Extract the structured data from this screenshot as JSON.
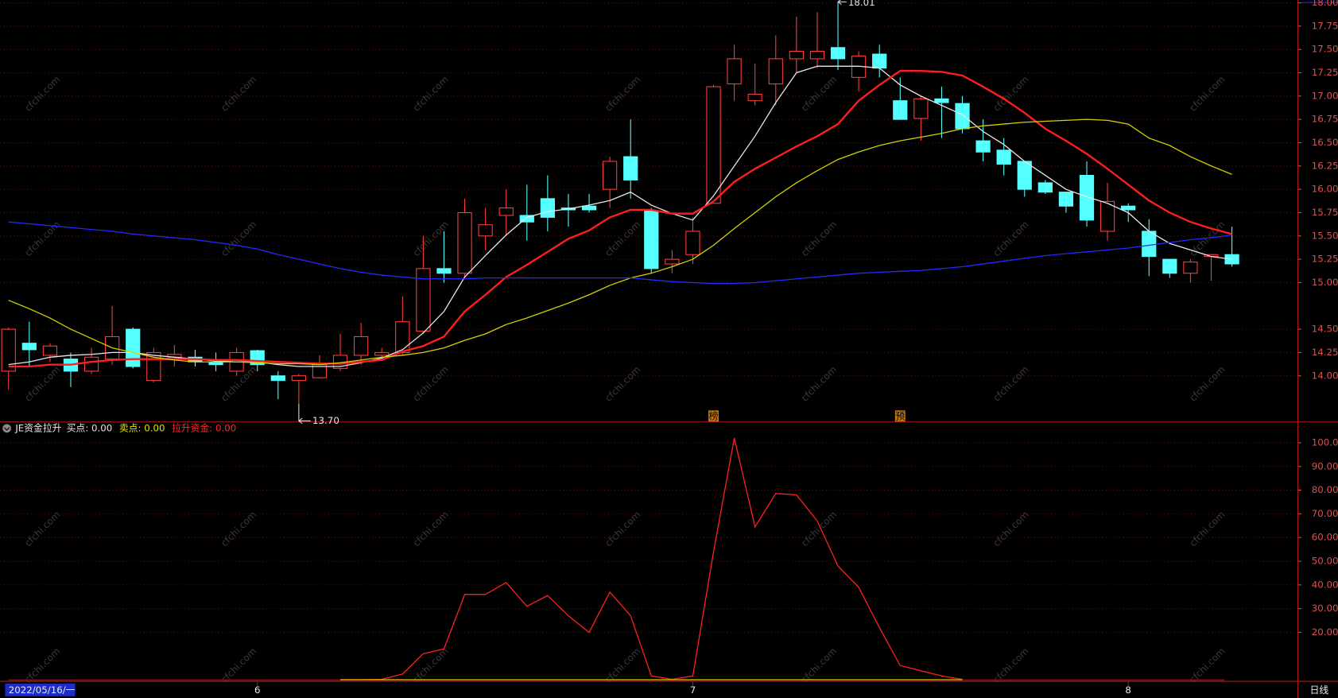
{
  "watermark": "cfchi.com",
  "chart_data": [
    {
      "type": "candlestick",
      "categories": [
        "2022/05/16/一",
        null,
        null,
        null,
        null,
        null,
        null,
        null,
        null,
        null,
        null,
        null,
        "6",
        null,
        null,
        null,
        null,
        null,
        null,
        null,
        null,
        null,
        null,
        null,
        null,
        null,
        null,
        null,
        null,
        null,
        null,
        null,
        null,
        "7",
        null,
        null,
        null,
        null,
        null,
        null,
        null,
        null,
        null,
        null,
        null,
        null,
        null,
        null,
        null,
        null,
        null,
        null,
        null,
        null,
        "8",
        null,
        null,
        null,
        null,
        null
      ],
      "period": "日线",
      "open": [
        14.05,
        14.35,
        14.22,
        14.18,
        14.05,
        14.18,
        14.5,
        13.95,
        14.2,
        14.2,
        14.15,
        14.05,
        14.27,
        14.0,
        13.95,
        13.98,
        14.08,
        14.22,
        14.22,
        14.25,
        14.48,
        15.15,
        15.1,
        15.5,
        15.72,
        15.72,
        15.9,
        15.8,
        15.82,
        16.0,
        16.35,
        15.77,
        15.2,
        15.3,
        15.85,
        17.13,
        16.95,
        17.13,
        17.4,
        17.4,
        17.52,
        17.2,
        17.45,
        16.95,
        16.76,
        16.97,
        16.92,
        16.52,
        16.42,
        16.3,
        16.07,
        15.97,
        16.15,
        15.55,
        15.82,
        15.55,
        15.25,
        15.1,
        15.28,
        15.3
      ],
      "high": [
        14.52,
        14.58,
        14.35,
        14.25,
        14.3,
        14.75,
        14.52,
        14.3,
        14.33,
        14.28,
        14.25,
        14.3,
        14.28,
        14.05,
        14.02,
        14.22,
        14.45,
        14.57,
        14.3,
        14.85,
        15.5,
        15.55,
        15.9,
        15.8,
        16.0,
        16.05,
        16.15,
        15.95,
        15.95,
        16.35,
        16.75,
        15.8,
        15.35,
        15.7,
        17.12,
        17.55,
        17.35,
        17.65,
        17.85,
        17.9,
        18.01,
        17.48,
        17.55,
        17.2,
        17.0,
        17.1,
        17.0,
        16.75,
        16.55,
        16.3,
        16.1,
        15.97,
        16.3,
        16.07,
        15.85,
        15.68,
        15.25,
        15.25,
        15.3,
        15.6
      ],
      "low": [
        13.85,
        14.1,
        14.15,
        13.88,
        14.02,
        14.12,
        14.08,
        13.93,
        14.1,
        14.1,
        14.05,
        14.0,
        14.05,
        13.75,
        13.7,
        13.97,
        14.05,
        14.12,
        14.2,
        14.22,
        14.45,
        15.0,
        15.05,
        15.35,
        15.5,
        15.45,
        15.55,
        15.6,
        15.75,
        15.8,
        15.9,
        15.1,
        15.1,
        15.2,
        15.85,
        16.95,
        16.9,
        16.9,
        17.25,
        17.3,
        17.28,
        17.05,
        17.2,
        16.75,
        16.52,
        16.55,
        16.6,
        16.3,
        16.15,
        15.92,
        15.95,
        15.75,
        15.6,
        15.45,
        15.65,
        15.07,
        15.05,
        15.0,
        15.02,
        15.17
      ],
      "close": [
        14.5,
        14.28,
        14.32,
        14.05,
        14.2,
        14.42,
        14.1,
        14.25,
        14.23,
        14.15,
        14.12,
        14.25,
        14.12,
        13.95,
        14.0,
        14.12,
        14.22,
        14.42,
        14.25,
        14.58,
        15.15,
        15.1,
        15.75,
        15.62,
        15.8,
        15.65,
        15.7,
        15.78,
        15.78,
        16.3,
        16.1,
        15.15,
        15.25,
        15.55,
        17.1,
        17.4,
        17.02,
        17.4,
        17.48,
        17.48,
        17.4,
        17.43,
        17.3,
        16.75,
        16.97,
        16.93,
        16.65,
        16.4,
        16.27,
        16.0,
        15.97,
        15.82,
        15.67,
        15.87,
        15.78,
        15.28,
        15.1,
        15.22,
        15.3,
        15.2
      ],
      "low_labels": [
        null,
        null,
        null,
        null,
        null,
        null,
        null,
        null,
        null,
        null,
        null,
        null,
        null,
        null,
        "13.70",
        null,
        null,
        null,
        null,
        null,
        null,
        null,
        null,
        null,
        null,
        null,
        null,
        null,
        null,
        null,
        null,
        null,
        null,
        null,
        null,
        null,
        null,
        null,
        null,
        null,
        null,
        null,
        null,
        null,
        null,
        null,
        null,
        null,
        null,
        null,
        null,
        null,
        null,
        null,
        null,
        null,
        null,
        null,
        null,
        null
      ],
      "markers": [
        null,
        null,
        null,
        null,
        null,
        null,
        null,
        null,
        null,
        null,
        null,
        null,
        null,
        null,
        null,
        null,
        null,
        null,
        null,
        null,
        null,
        null,
        null,
        null,
        null,
        null,
        null,
        null,
        null,
        null,
        null,
        null,
        null,
        null,
        "榜",
        null,
        null,
        null,
        null,
        null,
        null,
        null,
        null,
        "预",
        null,
        null,
        null,
        null,
        null,
        null,
        null,
        null,
        null,
        null,
        null,
        null,
        null,
        null,
        null,
        null
      ],
      "up_color": "#ff3c3c",
      "down_color": "#54ffff",
      "marker_color": "#c87800",
      "series": [
        {
          "color": "#e8e8e8",
          "values": [
            14.12,
            14.15,
            14.2,
            14.22,
            14.23,
            14.25,
            14.25,
            14.22,
            14.2,
            14.18,
            14.16,
            14.15,
            14.15,
            14.12,
            14.1,
            14.1,
            14.1,
            14.14,
            14.19,
            14.28,
            14.46,
            14.69,
            15.06,
            15.29,
            15.51,
            15.7,
            15.76,
            15.79,
            15.83,
            15.88,
            15.97,
            15.83,
            15.74,
            15.67,
            15.93,
            16.25,
            16.57,
            16.93,
            17.25,
            17.32,
            17.32,
            17.32,
            17.3,
            17.12,
            17.0,
            16.9,
            16.8,
            16.62,
            16.48,
            16.3,
            16.15,
            16.0,
            15.92,
            15.85,
            15.75,
            15.55,
            15.42,
            15.35,
            15.28,
            15.25
          ]
        },
        {
          "color": "#ff1e1e",
          "width": 2.2,
          "values": [
            14.1,
            14.1,
            14.12,
            14.12,
            14.15,
            14.17,
            14.18,
            14.18,
            14.18,
            14.18,
            14.17,
            14.17,
            14.16,
            14.15,
            14.14,
            14.13,
            14.13,
            14.15,
            14.17,
            14.26,
            14.32,
            14.42,
            14.69,
            14.87,
            15.06,
            15.19,
            15.33,
            15.47,
            15.56,
            15.7,
            15.78,
            15.78,
            15.74,
            15.74,
            15.87,
            16.08,
            16.22,
            16.34,
            16.46,
            16.57,
            16.7,
            16.95,
            17.12,
            17.27,
            17.27,
            17.26,
            17.22,
            17.1,
            16.97,
            16.82,
            16.65,
            16.52,
            16.38,
            16.22,
            16.05,
            15.88,
            15.75,
            15.65,
            15.58,
            15.52
          ]
        },
        {
          "color": "#d2d200",
          "values": [
            14.81,
            14.72,
            14.62,
            14.5,
            14.4,
            14.3,
            14.25,
            14.2,
            14.17,
            14.15,
            14.15,
            14.15,
            14.14,
            14.13,
            14.13,
            14.12,
            14.14,
            14.17,
            14.2,
            14.22,
            14.25,
            14.3,
            14.38,
            14.45,
            14.55,
            14.62,
            14.7,
            14.78,
            14.87,
            14.97,
            15.05,
            15.1,
            15.17,
            15.25,
            15.4,
            15.58,
            15.75,
            15.92,
            16.07,
            16.2,
            16.32,
            16.4,
            16.47,
            16.52,
            16.56,
            16.6,
            16.65,
            16.68,
            16.7,
            16.72,
            16.73,
            16.74,
            16.75,
            16.74,
            16.7,
            16.55,
            16.47,
            16.35,
            16.25,
            16.16
          ]
        },
        {
          "color": "#2828ff",
          "values": [
            15.65,
            15.63,
            15.61,
            15.59,
            15.57,
            15.55,
            15.52,
            15.5,
            15.48,
            15.46,
            15.43,
            15.4,
            15.36,
            15.3,
            15.25,
            15.2,
            15.15,
            15.11,
            15.08,
            15.06,
            15.04,
            15.04,
            15.04,
            15.05,
            15.05,
            15.05,
            15.05,
            15.05,
            15.05,
            15.05,
            15.05,
            15.03,
            15.01,
            15.0,
            14.99,
            14.99,
            15.0,
            15.02,
            15.04,
            15.06,
            15.08,
            15.1,
            15.11,
            15.12,
            15.13,
            15.15,
            15.17,
            15.2,
            15.23,
            15.26,
            15.29,
            15.31,
            15.33,
            15.35,
            15.37,
            15.4,
            15.43,
            15.46,
            15.48,
            15.51
          ]
        }
      ],
      "ylim": [
        13.51,
        18.03
      ],
      "yticks": [
        {
          "value": 14,
          "label": "14.00"
        },
        14.25,
        {
          "value": 14.5,
          "label": "14.50"
        },
        {
          "value": 15,
          "label": "15.00"
        },
        15.25,
        {
          "value": 15.5,
          "label": "15.50"
        },
        15.75,
        {
          "value": 16,
          "label": "16.00"
        },
        16.25,
        {
          "value": 16.5,
          "label": "16.50"
        },
        16.75,
        {
          "value": 17,
          "label": "17.00"
        },
        17.25,
        {
          "value": 17.5,
          "label": "17.50"
        },
        17.75,
        {
          "value": 18,
          "label": "18.00"
        }
      ],
      "grid": true,
      "axis_color": "#e05050"
    },
    {
      "type": "line",
      "title": "JE资金拉升",
      "legend": [
        {
          "text": "买点: 0.00",
          "color": "#e8e8e8"
        },
        {
          "text": "卖点: 0.00",
          "color": "#e6e600"
        },
        {
          "text": "拉升资金: 0.00",
          "color": "#ff2a2a"
        }
      ],
      "series": [
        {
          "color": "#ff2020",
          "values": [
            null,
            null,
            null,
            null,
            null,
            null,
            null,
            null,
            null,
            null,
            null,
            null,
            null,
            null,
            null,
            null,
            0,
            0,
            0.2,
            2.4,
            11,
            13,
            36,
            36,
            41,
            31,
            35.5,
            27,
            20,
            37,
            27,
            1.6,
            0.2,
            1.6,
            54,
            102,
            64.5,
            78.6,
            78,
            67,
            48,
            39,
            22,
            6,
            3.8,
            1.6,
            0.2,
            null,
            null,
            null,
            null,
            null,
            null,
            null,
            null,
            null,
            null,
            null,
            null,
            null
          ]
        },
        {
          "color": "#c8c800",
          "values": [
            null,
            null,
            null,
            null,
            null,
            null,
            null,
            null,
            null,
            null,
            null,
            null,
            null,
            null,
            null,
            null,
            0,
            0,
            0,
            0,
            0,
            0,
            0,
            0,
            0,
            0,
            0,
            0,
            0,
            0,
            0,
            0,
            0,
            0,
            0,
            0,
            0,
            0,
            0,
            0,
            0,
            0,
            0,
            0,
            0,
            0,
            0,
            null,
            null,
            null,
            null,
            null,
            null,
            null,
            null,
            null,
            null,
            null,
            null,
            null
          ]
        }
      ],
      "ylim": [
        -0.5,
        108.6
      ],
      "yticks": [
        {
          "value": 20,
          "label": "20.00"
        },
        {
          "value": 30,
          "label": "30.00"
        },
        {
          "value": 40,
          "label": "40.00"
        },
        {
          "value": 50,
          "label": "50.00"
        },
        {
          "value": 60,
          "label": "60.00"
        },
        {
          "value": 70,
          "label": "70.00"
        },
        {
          "value": 80,
          "label": "80.00"
        },
        {
          "value": 90,
          "label": "90.00"
        },
        {
          "value": 100,
          "label": "100.00"
        }
      ],
      "grid": true,
      "axis_color": "#e05050"
    }
  ]
}
